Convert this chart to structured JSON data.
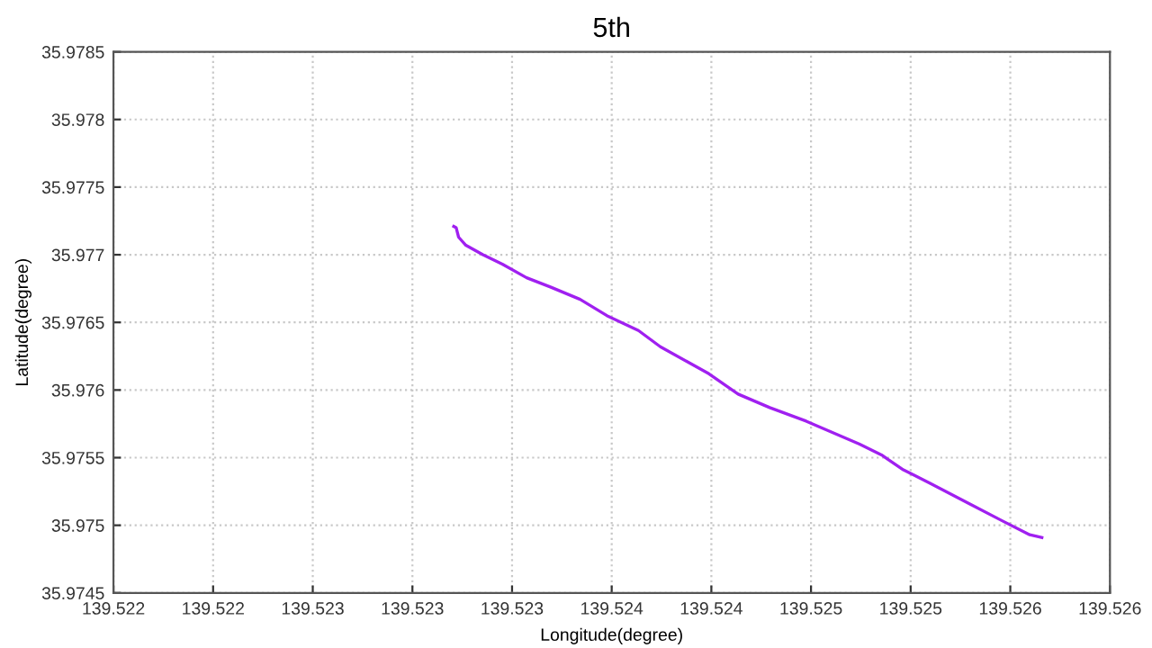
{
  "chart_data": {
    "type": "line",
    "title": "5th",
    "xlabel": "Longitude(degree)",
    "ylabel": "Latitude(degree)",
    "x": [
      139.52325,
      139.52326,
      139.52327,
      139.5233,
      139.52337,
      139.52345,
      139.52355,
      139.52365,
      139.52377,
      139.52388,
      139.52401,
      139.5241,
      139.52421,
      139.5243,
      139.52442,
      139.52455,
      139.5247,
      139.52492,
      139.52501,
      139.5251,
      139.52521,
      139.52537,
      139.52551,
      139.52562,
      139.52567
    ],
    "series": [
      {
        "color": "#a020f0",
        "values": [
          35.97721,
          35.9772,
          35.97713,
          35.97707,
          35.977,
          35.97693,
          35.97683,
          35.97676,
          35.97667,
          35.97655,
          35.97644,
          35.97632,
          35.97621,
          35.97612,
          35.97597,
          35.97587,
          35.97577,
          35.9756,
          35.97552,
          35.97541,
          35.97531,
          35.97516,
          35.97503,
          35.97493,
          35.97491
        ]
      }
    ],
    "xlim": [
      139.52185,
      139.52595
    ],
    "ylim": [
      35.9745,
      35.9785
    ],
    "xticks": [
      {
        "value": 139.52185,
        "label": "139.522"
      },
      {
        "value": 139.52226,
        "label": "139.522"
      },
      {
        "value": 139.52267,
        "label": "139.523"
      },
      {
        "value": 139.52308,
        "label": "139.523"
      },
      {
        "value": 139.52349,
        "label": "139.523"
      },
      {
        "value": 139.5239,
        "label": "139.524"
      },
      {
        "value": 139.52431,
        "label": "139.524"
      },
      {
        "value": 139.52472,
        "label": "139.525"
      },
      {
        "value": 139.52513,
        "label": "139.525"
      },
      {
        "value": 139.52554,
        "label": "139.526"
      },
      {
        "value": 139.52595,
        "label": "139.526"
      }
    ],
    "yticks": [
      35.9745,
      35.975,
      35.9755,
      35.976,
      35.9765,
      35.977,
      35.9775,
      35.978,
      35.9785
    ],
    "grid": true,
    "legend": false,
    "marker": "none",
    "line_style": "solid"
  }
}
